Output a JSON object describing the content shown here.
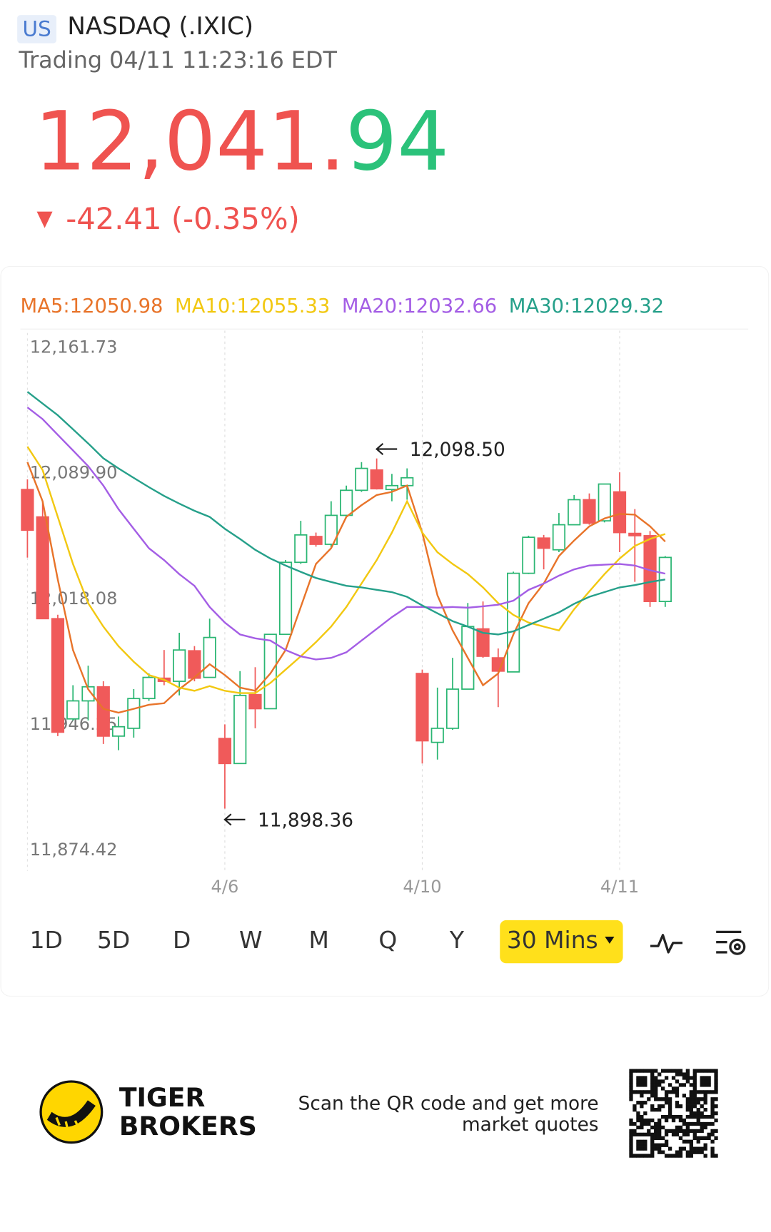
{
  "header": {
    "market": "US",
    "name": "NASDAQ (.IXIC)",
    "status": "Trading 04/11 11:23:16 EDT",
    "price": "12,041.94",
    "change": "-42.41 (-0.35%)"
  },
  "chart_data": {
    "type": "candlestick",
    "categories": [
      null,
      null,
      null,
      null,
      null,
      null,
      null,
      null,
      null,
      null,
      null,
      null,
      null,
      "4/6",
      null,
      null,
      null,
      null,
      null,
      null,
      null,
      null,
      null,
      null,
      null,
      null,
      "4/10",
      null,
      null,
      null,
      null,
      null,
      null,
      null,
      null,
      null,
      null,
      null,
      null,
      "4/11",
      null,
      null,
      null
    ],
    "open": [
      12080.75,
      12065.09,
      12006.92,
      11949.65,
      11959.94,
      11967.99,
      11939.8,
      11944.28,
      11961.28,
      11972.91,
      11971.12,
      11988.57,
      11973.36,
      11938.46,
      11924.14,
      11963.52,
      11955.47,
      11997.97,
      12039.13,
      12053.9,
      12049.43,
      12065.98,
      12080.3,
      12091.93,
      12080.75,
      12082.98,
      11975.6,
      11936.23,
      11944.28,
      11966.65,
      12001.1,
      11984.55,
      11976.49,
      12032.87,
      12053.0,
      12046.29,
      12060.61,
      12074.93,
      12062.85,
      12079.4,
      12055.69,
      12054.35,
      12016.76
    ],
    "high": [
      12086.56,
      12074.03,
      12009.16,
      11968.89,
      11980.07,
      11971.12,
      11950.99,
      11966.65,
      11975.6,
      11989.02,
      11998.86,
      11991.26,
      12006.92,
      11946.52,
      11976.94,
      11979.18,
      11997.97,
      12040.48,
      12062.85,
      12056.14,
      12074.03,
      12082.98,
      12096.41,
      12098.5,
      12089.69,
      12092.83,
      11977.84,
      11967.55,
      11984.55,
      12015.87,
      12016.76,
      11989.92,
      12033.77,
      12054.35,
      12054.79,
      12067.32,
      12077.61,
      12078.51,
      12083.88,
      12090.59,
      12069.56,
      12057.03,
      12042.71
    ],
    "low": [
      12041.82,
      12006.92,
      11939.8,
      11948.75,
      11948.75,
      11935.33,
      11931.75,
      11938.91,
      11959.94,
      11968.89,
      11963.07,
      11971.12,
      11973.36,
      11898.36,
      11924.14,
      11944.28,
      11955.47,
      11997.97,
      12038.24,
      12048.08,
      12047.19,
      12065.09,
      12079.4,
      12080.75,
      12074.03,
      12074.93,
      11924.14,
      11926.38,
      11943.38,
      11966.65,
      11984.55,
      11956.36,
      11976.49,
      12032.42,
      12035.11,
      12044.95,
      12060.61,
      12060.61,
      12061.95,
      12044.95,
      12027.95,
      12013.63,
      12013.63
    ],
    "close": [
      12057.48,
      12006.92,
      11942.04,
      11959.94,
      11967.99,
      11939.8,
      11945.17,
      11961.28,
      11973.36,
      11971.12,
      11989.02,
      11972.91,
      11996.18,
      11924.14,
      11963.07,
      11955.47,
      11997.97,
      12039.13,
      12054.79,
      12049.43,
      12065.98,
      12080.3,
      12092.83,
      12081.19,
      12082.98,
      12087.46,
      11937.12,
      11944.28,
      11966.65,
      12002.45,
      11985.44,
      11976.94,
      12032.87,
      12053.45,
      12047.19,
      12060.61,
      12074.93,
      12061.51,
      12083.88,
      12056.14,
      12054.35,
      12016.76,
      12041.94
    ],
    "up_color": "#2bb673",
    "down_color": "#f05a5a",
    "series": [
      {
        "name": "MA5:12050.98",
        "color": "#e8742a",
        "values": [
          12096.4,
          12074.0,
          12029.3,
          11989.0,
          11966.6,
          11955.4,
          11953.2,
          11955.4,
          11957.7,
          11958.6,
          11966.6,
          11973.3,
          11980.9,
          11974.7,
          11967.5,
          11965.7,
          11975.6,
          11989.0,
          12013.6,
          12038.2,
          12047.2,
          12065.1,
          12071.8,
          12077.6,
          12079.4,
          12083.0,
          12056.1,
          12020.3,
          12000.2,
          11984.5,
          11968.9,
          11975.6,
          11997.9,
          12015.8,
          12027.0,
          12042.7,
          12051.6,
          12059.7,
          12064.2,
          12066.8,
          12066.4,
          12059.7,
          12050.98
        ]
      },
      {
        "name": "MA10:12055.33",
        "color": "#f2c811",
        "values": [
          12105.3,
          12091.9,
          12065.1,
          12038.2,
          12015.8,
          12002.4,
          11991.2,
          11982.3,
          11974.7,
          11972.0,
          11967.5,
          11965.7,
          11968.4,
          11965.7,
          11964.4,
          11964.4,
          11970.2,
          11977.8,
          11985.4,
          11993.5,
          12002.4,
          12013.6,
          12027.0,
          12040.4,
          12056.1,
          12074.0,
          12056.1,
          12044.9,
          12038.2,
          12032.4,
          12024.8,
          12015.8,
          12009.1,
          12004.7,
          12002.4,
          12000.2,
          12012.3,
          12022.5,
          12032.4,
          12041.3,
          12048.5,
          12052.5,
          12055.33
        ]
      },
      {
        "name": "MA20:12032.66",
        "color": "#a45ee5",
        "values": [
          12127.7,
          12121.0,
          12112.0,
          12103.1,
          12094.1,
          12083.0,
          12069.5,
          12058.3,
          12047.2,
          12040.4,
          12032.4,
          12025.7,
          12013.6,
          12004.7,
          11997.9,
          11995.7,
          11994.4,
          11989.0,
          11985.4,
          11983.6,
          11984.5,
          11987.7,
          11994.4,
          12001.1,
          12007.8,
          12013.6,
          12013.6,
          12013.2,
          12013.6,
          12013.2,
          12014.0,
          12014.9,
          12017.2,
          12023.4,
          12027.0,
          12031.5,
          12035.1,
          12037.3,
          12037.8,
          12038.2,
          12037.3,
          12034.6,
          12032.66
        ]
      },
      {
        "name": "MA30:12029.32",
        "color": "#26a08a",
        "values": [
          12136.6,
          12129.9,
          12123.2,
          12115.2,
          12107.1,
          12098.6,
          12092.8,
          12087.4,
          12082.1,
          12077.1,
          12072.7,
          12068.6,
          12065.1,
          12058.3,
          12052.5,
          12046.3,
          12041.3,
          12037.3,
          12033.7,
          12030.2,
          12027.9,
          12025.7,
          12024.8,
          12023.4,
          12022.1,
          12019.4,
          12014.5,
          12010.0,
          12005.5,
          12002.4,
          11998.8,
          11997.9,
          11999.7,
          12003.3,
          12006.9,
          12010.5,
          12015.4,
          12019.4,
          12022.1,
          12024.8,
          12026.1,
          12027.9,
          12029.32
        ]
      }
    ],
    "ylim": [
      11874.42,
      12161.73
    ],
    "yticks": [
      {
        "value": 12161.73,
        "label": "12,161.73"
      },
      {
        "value": 12089.9,
        "label": "12,089.90"
      },
      {
        "value": 12018.08,
        "label": "12,018.08"
      },
      {
        "value": 11946.25,
        "label": "11,946.25"
      },
      {
        "value": 11874.42,
        "label": "11,874.42"
      }
    ],
    "annotations": [
      {
        "value": 12098.5,
        "label": "12,098.50"
      },
      {
        "value": 11898.36,
        "label": "11,898.36"
      }
    ]
  },
  "periods": [
    "1D",
    "5D",
    "D",
    "W",
    "M",
    "Q",
    "Y",
    "30 Mins"
  ],
  "footer": {
    "brand_line1": "TIGER",
    "brand_line2": "BROKERS",
    "promo_line1": "Scan the QR code and get more",
    "promo_line2": "market quotes"
  }
}
